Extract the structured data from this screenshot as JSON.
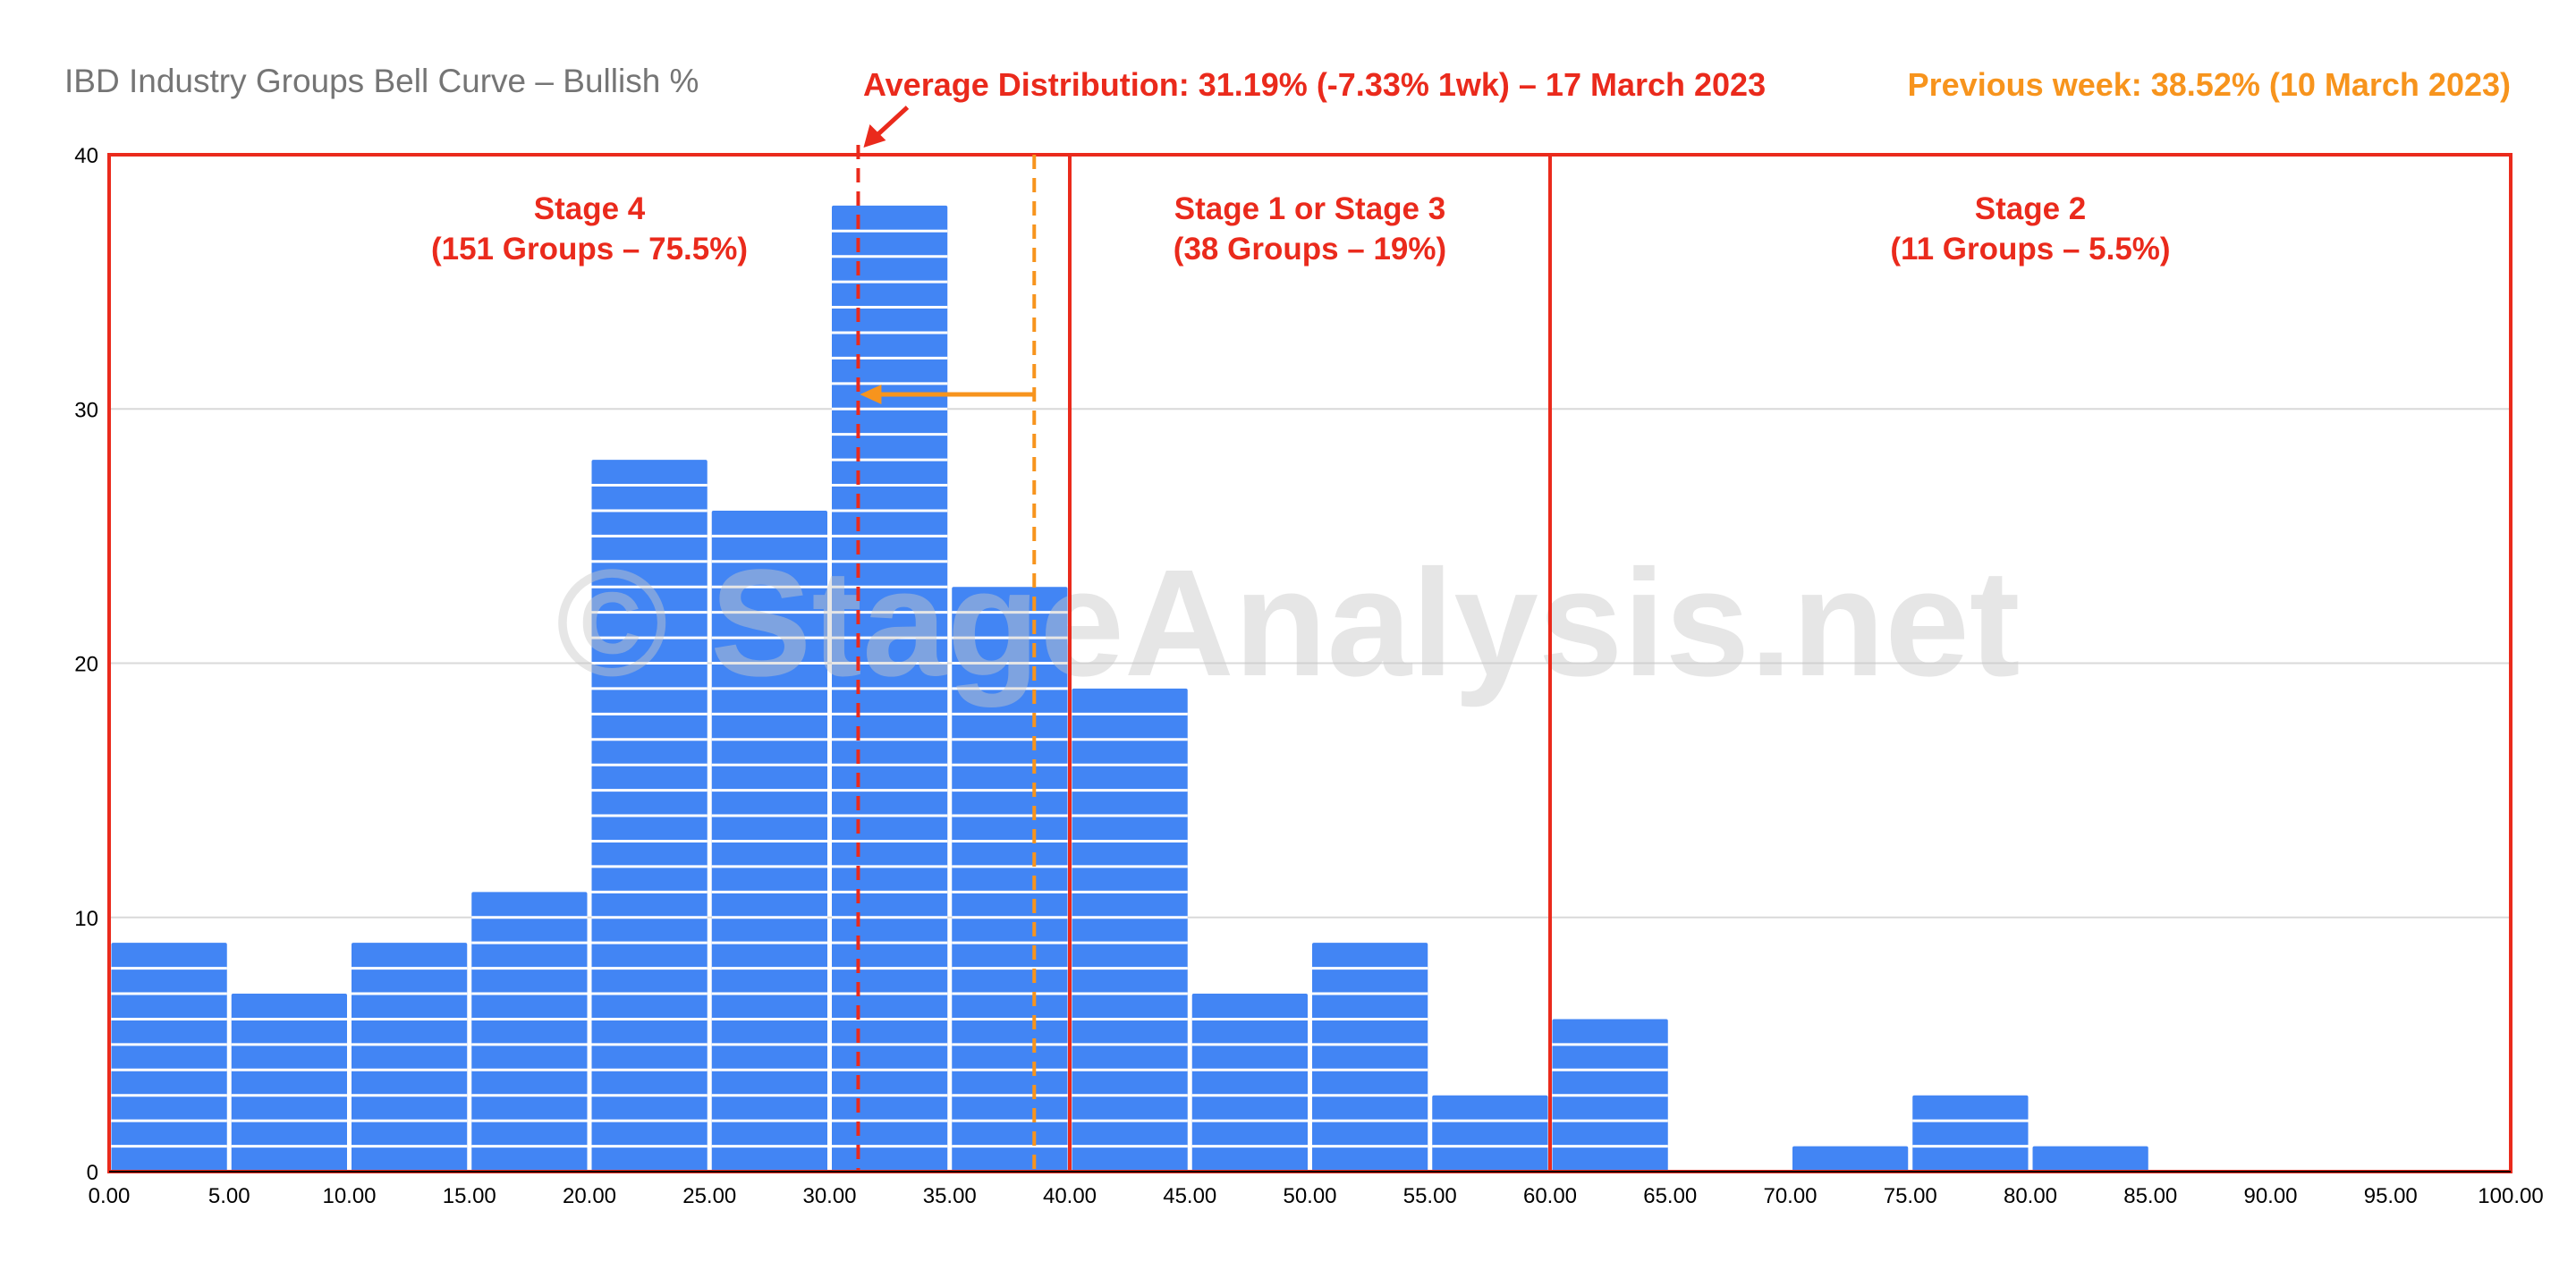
{
  "chart_data": {
    "type": "bar",
    "title": "IBD Industry Groups Bell Curve – Bullish %",
    "xlim": [
      0,
      100
    ],
    "ylim": [
      0,
      40
    ],
    "x_ticks": [
      "0.00",
      "5.00",
      "10.00",
      "15.00",
      "20.00",
      "25.00",
      "30.00",
      "35.00",
      "40.00",
      "45.00",
      "50.00",
      "55.00",
      "60.00",
      "65.00",
      "70.00",
      "75.00",
      "80.00",
      "85.00",
      "90.00",
      "95.00",
      "100.00"
    ],
    "y_ticks": [
      "0",
      "10",
      "20",
      "30",
      "40"
    ],
    "grid": true,
    "bins": [
      {
        "start": 0,
        "end": 5,
        "value": 9
      },
      {
        "start": 5,
        "end": 10,
        "value": 7
      },
      {
        "start": 10,
        "end": 15,
        "value": 9
      },
      {
        "start": 15,
        "end": 20,
        "value": 11
      },
      {
        "start": 20,
        "end": 25,
        "value": 28
      },
      {
        "start": 25,
        "end": 30,
        "value": 26
      },
      {
        "start": 30,
        "end": 35,
        "value": 38
      },
      {
        "start": 35,
        "end": 40,
        "value": 23
      },
      {
        "start": 40,
        "end": 45,
        "value": 19
      },
      {
        "start": 45,
        "end": 50,
        "value": 7
      },
      {
        "start": 50,
        "end": 55,
        "value": 9
      },
      {
        "start": 55,
        "end": 60,
        "value": 3
      },
      {
        "start": 60,
        "end": 65,
        "value": 6
      },
      {
        "start": 65,
        "end": 70,
        "value": 0
      },
      {
        "start": 70,
        "end": 75,
        "value": 1
      },
      {
        "start": 75,
        "end": 80,
        "value": 3
      },
      {
        "start": 80,
        "end": 85,
        "value": 1
      },
      {
        "start": 85,
        "end": 90,
        "value": 0
      },
      {
        "start": 90,
        "end": 95,
        "value": 0
      },
      {
        "start": 95,
        "end": 100,
        "value": 0
      }
    ],
    "stages": [
      {
        "x_start": 0,
        "x_end": 40,
        "label": "Stage 4",
        "sublabel": "(151 Groups – 75.5%)"
      },
      {
        "x_start": 40,
        "x_end": 60,
        "label": "Stage 1 or Stage 3",
        "sublabel": "(38 Groups – 19%)"
      },
      {
        "x_start": 60,
        "x_end": 100,
        "label": "Stage 2",
        "sublabel": "(11 Groups – 5.5%)"
      }
    ],
    "average_line": {
      "x": 31.19,
      "label": "Average Distribution: 31.19% (-7.33% 1wk) – 17 March 2023"
    },
    "previous_line": {
      "x": 38.52,
      "label": "Previous week: 38.52% (10 March 2023)"
    },
    "watermark": "© StageAnalysis.net",
    "colors": {
      "bar": "#4285f4",
      "stage_box": "#ea2a1c",
      "average": "#ea2a1c",
      "previous": "#f7941d",
      "title": "#757575",
      "grid": "#d9d9d9"
    }
  }
}
